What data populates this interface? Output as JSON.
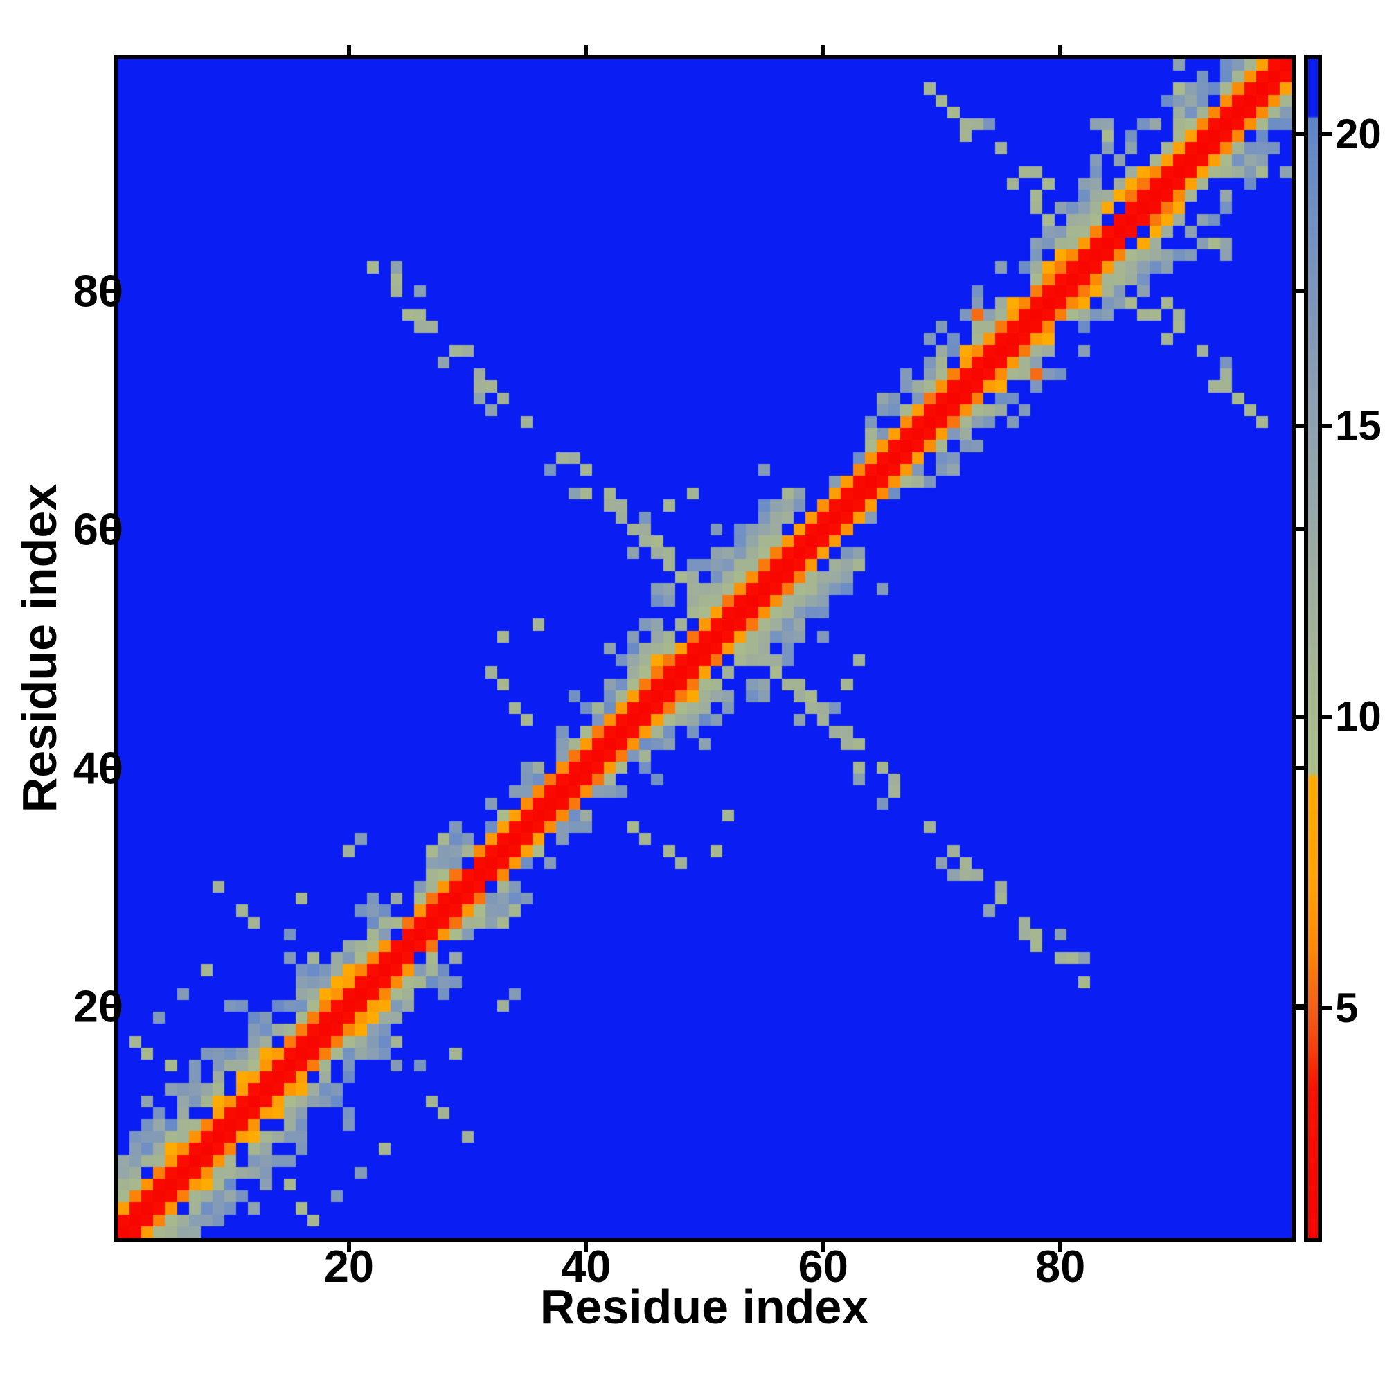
{
  "chart_data": {
    "type": "heatmap",
    "title": "",
    "xlabel": "Residue index",
    "ylabel": "Residue index",
    "x_ticks": [
      20,
      40,
      60,
      80
    ],
    "y_ticks": [
      20,
      40,
      60,
      80
    ],
    "n_residues": 99,
    "axis_min": 0.5,
    "axis_max": 99.5,
    "grid": false,
    "background_color": "#0a1df2",
    "colorbar": {
      "position": "right",
      "ticks": [
        5,
        10,
        15,
        20
      ],
      "vmin": 1.05,
      "vmax": 21.3
    },
    "background_value": 22,
    "colormap_stops": [
      [
        1.05,
        "#f80400"
      ],
      [
        3.6,
        "#fb1200"
      ],
      [
        4.3,
        "#f8400a"
      ],
      [
        5.0,
        "#f55f17"
      ],
      [
        6.0,
        "#fc8905"
      ],
      [
        7.0,
        "#ffa004"
      ],
      [
        8.95,
        "#ffac00"
      ],
      [
        9.05,
        "#abbc8a"
      ],
      [
        10.5,
        "#a6b78f"
      ],
      [
        12.0,
        "#9fae9c"
      ],
      [
        14.0,
        "#92a5ab"
      ],
      [
        16.0,
        "#879db4"
      ],
      [
        18.0,
        "#7693c1"
      ],
      [
        19.8,
        "#6689c8"
      ],
      [
        20.28,
        "#5e85cb"
      ],
      [
        20.32,
        "#0a1df2"
      ],
      [
        21.3,
        "#0a1df2"
      ]
    ],
    "matrix_spec": {
      "note": "procedural approximation of the symmetric residue-residue distance matrix shown (red diagonal core, orange flank, noisy sage band of varying width, anti-diagonal X-shaped arms crossing near residue 52, scattered steel-blue specks, blue holes)",
      "seed": 1337,
      "diag_values": {
        "d0": [
          1.15,
          0.3
        ],
        "d1": [
          2.0,
          0.8
        ],
        "d2": [
          5.4,
          1.8
        ]
      },
      "band_segments": [
        [
          1,
          14,
          7,
          0.16
        ],
        [
          15,
          22,
          6,
          0.12
        ],
        [
          23,
          30,
          5,
          0.12
        ],
        [
          31,
          36,
          4,
          0.1
        ],
        [
          37,
          43,
          5,
          0.1
        ],
        [
          44,
          57,
          7,
          0.1
        ],
        [
          58,
          63,
          3,
          0.08
        ],
        [
          64,
          68,
          5,
          0.1
        ],
        [
          69,
          80,
          6,
          0.12
        ],
        [
          81,
          90,
          7,
          0.14
        ],
        [
          91,
          99,
          6,
          0.12
        ]
      ],
      "cross_arms": [
        {
          "sum": 104,
          "i_from": 22,
          "i_to": 50,
          "dense_from": 37,
          "p_sparse": 0.42,
          "p_dense": 0.8
        },
        {
          "sum": 166,
          "i_from": 69,
          "i_to": 83,
          "dense_from": 99,
          "p_sparse": 0.38,
          "p_dense": 0.38
        }
      ],
      "specks": [
        [
          2,
          17
        ],
        [
          3,
          16
        ],
        [
          4,
          19
        ],
        [
          5,
          15
        ],
        [
          6,
          21
        ],
        [
          8,
          23
        ],
        [
          9,
          30
        ],
        [
          11,
          28
        ],
        [
          12,
          27
        ],
        [
          15,
          26
        ],
        [
          16,
          29
        ],
        [
          17,
          24
        ],
        [
          20,
          33
        ],
        [
          21,
          34
        ],
        [
          27,
          33
        ],
        [
          28,
          34
        ],
        [
          29,
          35
        ],
        [
          32,
          48
        ],
        [
          33,
          47
        ],
        [
          33,
          51
        ],
        [
          34,
          45
        ],
        [
          35,
          44
        ],
        [
          36,
          52
        ],
        [
          47,
          62
        ],
        [
          49,
          63
        ],
        [
          57,
          63
        ],
        [
          69,
          97
        ],
        [
          70,
          96
        ],
        [
          71,
          95
        ],
        [
          72,
          93
        ],
        [
          78,
          90
        ],
        [
          79,
          89
        ],
        [
          83,
          94
        ],
        [
          84,
          93
        ],
        [
          90,
          97
        ]
      ],
      "hotspots": [
        [
          73,
          78,
          5.3
        ],
        [
          75,
          77,
          5.6
        ]
      ],
      "holes": [
        [
          87,
          92
        ],
        [
          88,
          92
        ],
        [
          88,
          93
        ],
        [
          89,
          93
        ],
        [
          89,
          94
        ],
        [
          84,
          86
        ],
        [
          85,
          87
        ],
        [
          24,
          26
        ],
        [
          30,
          32
        ]
      ]
    }
  }
}
